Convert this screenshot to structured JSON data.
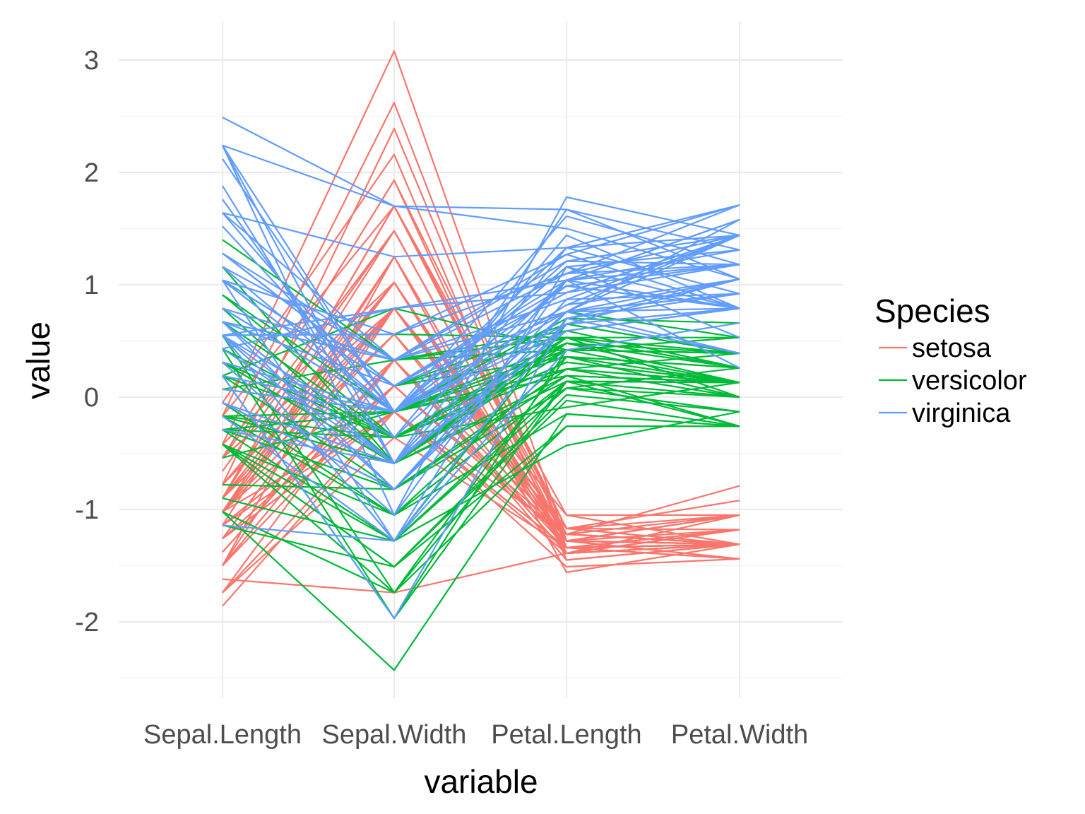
{
  "chart_data": {
    "type": "line",
    "subtype": "parallel-coordinates",
    "xlabel": "variable",
    "ylabel": "value",
    "categories": [
      "Sepal.Length",
      "Sepal.Width",
      "Petal.Length",
      "Petal.Width"
    ],
    "yticks": [
      -2,
      -1,
      0,
      1,
      2,
      3
    ],
    "ylim": [
      -2.6,
      3.2
    ],
    "grid": true,
    "legend": {
      "title": "Species",
      "position": "right",
      "entries": [
        "setosa",
        "versicolor",
        "virginica"
      ]
    },
    "colors": {
      "setosa": "#F8766D",
      "versicolor": "#00BA38",
      "virginica": "#619CFF"
    },
    "series": [
      {
        "group": "setosa",
        "lines": [
          [
            -0.9,
            1.02,
            -1.34,
            -1.31
          ],
          [
            -1.14,
            -0.13,
            -1.34,
            -1.31
          ],
          [
            -1.38,
            0.33,
            -1.39,
            -1.31
          ],
          [
            -1.5,
            0.1,
            -1.28,
            -1.31
          ],
          [
            -1.02,
            1.25,
            -1.34,
            -1.31
          ],
          [
            -0.54,
            1.93,
            -1.17,
            -1.05
          ],
          [
            -1.5,
            0.79,
            -1.34,
            -1.18
          ],
          [
            -1.02,
            0.79,
            -1.28,
            -1.31
          ],
          [
            -1.74,
            -0.36,
            -1.34,
            -1.31
          ],
          [
            -1.14,
            0.1,
            -1.28,
            -1.44
          ],
          [
            -0.54,
            1.48,
            -1.28,
            -1.31
          ],
          [
            -1.26,
            0.79,
            -1.22,
            -1.31
          ],
          [
            -1.26,
            -0.13,
            -1.34,
            -1.44
          ],
          [
            -1.86,
            -0.13,
            -1.51,
            -1.44
          ],
          [
            -0.05,
            2.16,
            -1.45,
            -1.31
          ],
          [
            -0.17,
            3.08,
            -1.28,
            -1.05
          ],
          [
            -0.54,
            1.93,
            -1.39,
            -1.05
          ],
          [
            -0.9,
            1.02,
            -1.34,
            -1.18
          ],
          [
            -0.17,
            1.7,
            -1.17,
            -1.18
          ],
          [
            -0.9,
            1.7,
            -1.28,
            -1.18
          ],
          [
            -0.54,
            0.79,
            -1.17,
            -1.31
          ],
          [
            -0.9,
            1.48,
            -1.28,
            -1.05
          ],
          [
            -1.5,
            1.25,
            -1.56,
            -1.31
          ],
          [
            -0.9,
            0.56,
            -1.17,
            -0.92
          ],
          [
            -1.26,
            0.79,
            -1.05,
            -1.31
          ],
          [
            -1.02,
            -0.13,
            -1.22,
            -1.31
          ],
          [
            -1.02,
            0.79,
            -1.22,
            -1.05
          ],
          [
            -0.78,
            1.02,
            -1.28,
            -1.31
          ],
          [
            -0.78,
            0.79,
            -1.34,
            -1.31
          ],
          [
            -1.38,
            0.33,
            -1.22,
            -1.31
          ],
          [
            -1.26,
            0.1,
            -1.22,
            -1.31
          ],
          [
            -0.54,
            0.79,
            -1.28,
            -1.05
          ],
          [
            -0.78,
            2.39,
            -1.28,
            -1.44
          ],
          [
            -0.42,
            2.62,
            -1.34,
            -1.31
          ],
          [
            -1.14,
            0.1,
            -1.28,
            -1.31
          ],
          [
            -1.02,
            0.33,
            -1.45,
            -1.31
          ],
          [
            -0.42,
            1.02,
            -1.39,
            -1.31
          ],
          [
            -1.14,
            1.25,
            -1.34,
            -1.44
          ],
          [
            -1.74,
            -0.13,
            -1.39,
            -1.31
          ],
          [
            -0.9,
            0.79,
            -1.28,
            -1.31
          ],
          [
            -1.02,
            1.02,
            -1.39,
            -1.18
          ],
          [
            -1.62,
            -1.74,
            -1.39,
            -1.18
          ],
          [
            -1.74,
            0.33,
            -1.39,
            -1.31
          ],
          [
            -1.02,
            1.02,
            -1.22,
            -0.79
          ],
          [
            -0.9,
            1.7,
            -1.05,
            -1.05
          ],
          [
            -1.26,
            -0.13,
            -1.34,
            -1.18
          ],
          [
            -0.9,
            1.7,
            -1.22,
            -1.31
          ],
          [
            -1.5,
            0.33,
            -1.34,
            -1.31
          ],
          [
            -0.66,
            1.48,
            -1.28,
            -1.31
          ],
          [
            -1.02,
            0.56,
            -1.34,
            -1.31
          ]
        ]
      },
      {
        "group": "versicolor",
        "lines": [
          [
            1.4,
            0.33,
            0.53,
            0.26
          ],
          [
            0.67,
            0.33,
            0.42,
            0.39
          ],
          [
            1.28,
            0.1,
            0.65,
            0.39
          ],
          [
            -0.42,
            -1.74,
            0.14,
            0.13
          ],
          [
            0.79,
            -0.59,
            0.48,
            0.39
          ],
          [
            -0.17,
            -0.59,
            0.42,
            0.13
          ],
          [
            0.55,
            0.56,
            0.53,
            0.53
          ],
          [
            -1.14,
            -1.51,
            -0.26,
            -0.26
          ],
          [
            0.91,
            -0.36,
            0.48,
            0.13
          ],
          [
            -0.78,
            -0.82,
            0.08,
            0.26
          ],
          [
            -1.02,
            -2.43,
            -0.15,
            -0.26
          ],
          [
            0.07,
            -0.13,
            0.25,
            0.39
          ],
          [
            0.19,
            -1.97,
            0.14,
            -0.26
          ],
          [
            0.31,
            -0.36,
            0.53,
            0.26
          ],
          [
            -0.29,
            -0.36,
            -0.09,
            0.13
          ],
          [
            1.04,
            0.1,
            0.36,
            0.26
          ],
          [
            -0.29,
            -0.13,
            0.42,
            0.39
          ],
          [
            -0.05,
            -0.82,
            0.19,
            -0.26
          ],
          [
            0.43,
            -1.97,
            0.42,
            0.39
          ],
          [
            -0.29,
            -1.28,
            0.08,
            -0.13
          ],
          [
            0.07,
            0.33,
            0.59,
            0.79
          ],
          [
            0.31,
            -0.59,
            0.14,
            0.13
          ],
          [
            0.55,
            -1.28,
            0.65,
            0.39
          ],
          [
            0.31,
            -0.59,
            0.53,
            0.0
          ],
          [
            0.67,
            -0.36,
            0.31,
            0.13
          ],
          [
            0.91,
            -0.13,
            0.36,
            0.26
          ],
          [
            1.16,
            -0.59,
            0.59,
            0.26
          ],
          [
            1.04,
            -0.13,
            0.7,
            0.66
          ],
          [
            0.19,
            -0.36,
            0.42,
            0.39
          ],
          [
            -0.17,
            -1.05,
            -0.15,
            -0.26
          ],
          [
            -0.42,
            -1.51,
            0.02,
            -0.13
          ],
          [
            -0.42,
            -1.51,
            -0.03,
            -0.26
          ],
          [
            -0.05,
            -0.82,
            0.08,
            0.0
          ],
          [
            0.19,
            -0.82,
            0.76,
            0.53
          ],
          [
            -0.54,
            -0.13,
            0.42,
            0.39
          ],
          [
            0.19,
            0.79,
            0.42,
            0.53
          ],
          [
            1.04,
            0.1,
            0.53,
            0.39
          ],
          [
            0.55,
            -1.74,
            0.36,
            0.13
          ],
          [
            -0.29,
            -0.13,
            0.19,
            0.13
          ],
          [
            -0.42,
            -1.28,
            0.14,
            0.13
          ],
          [
            -0.42,
            -1.05,
            0.36,
            0.0
          ],
          [
            0.31,
            -0.13,
            0.48,
            0.26
          ],
          [
            -0.05,
            -1.05,
            0.14,
            0.0
          ],
          [
            -1.02,
            -1.74,
            -0.26,
            -0.26
          ],
          [
            -0.29,
            -0.82,
            0.25,
            0.13
          ],
          [
            -0.17,
            -0.13,
            0.25,
            0.0
          ],
          [
            -0.17,
            -0.36,
            0.25,
            0.13
          ],
          [
            0.43,
            -0.36,
            0.31,
            0.13
          ],
          [
            -0.9,
            -1.28,
            -0.43,
            -0.13
          ],
          [
            -0.17,
            -0.59,
            0.19,
            0.13
          ]
        ]
      },
      {
        "group": "virginica",
        "lines": [
          [
            0.55,
            0.56,
            1.27,
            1.71
          ],
          [
            -0.05,
            -0.82,
            0.76,
            0.92
          ],
          [
            1.52,
            -0.13,
            1.21,
            1.18
          ],
          [
            0.55,
            -0.36,
            1.04,
            0.79
          ],
          [
            0.79,
            -0.13,
            1.16,
            1.31
          ],
          [
            2.12,
            -0.13,
            1.61,
            1.18
          ],
          [
            -1.14,
            -1.28,
            0.42,
            0.66
          ],
          [
            1.76,
            -0.36,
            1.44,
            0.79
          ],
          [
            1.04,
            -1.28,
            1.16,
            0.79
          ],
          [
            1.64,
            1.25,
            1.33,
            1.71
          ],
          [
            0.79,
            0.33,
            0.76,
            1.05
          ],
          [
            0.67,
            -0.82,
            0.87,
            0.92
          ],
          [
            1.16,
            -0.13,
            0.99,
            1.18
          ],
          [
            -0.17,
            -1.28,
            0.7,
            1.05
          ],
          [
            -0.05,
            -0.59,
            0.76,
            1.58
          ],
          [
            0.67,
            0.33,
            0.87,
            1.44
          ],
          [
            0.79,
            -0.13,
            0.99,
            0.79
          ],
          [
            2.24,
            1.7,
            1.67,
            1.31
          ],
          [
            2.24,
            -1.05,
            1.78,
            1.44
          ],
          [
            0.19,
            -1.97,
            0.7,
            0.39
          ],
          [
            1.28,
            0.33,
            1.1,
            1.44
          ],
          [
            -0.29,
            -0.59,
            0.65,
            1.05
          ],
          [
            2.24,
            -0.59,
            1.67,
            1.05
          ],
          [
            0.55,
            -0.82,
            0.65,
            0.79
          ],
          [
            1.04,
            0.56,
            1.1,
            1.18
          ],
          [
            1.64,
            0.33,
            1.27,
            0.79
          ],
          [
            0.43,
            -0.59,
            0.59,
            0.79
          ],
          [
            0.31,
            -0.13,
            0.65,
            0.79
          ],
          [
            0.67,
            -0.59,
            1.04,
            1.18
          ],
          [
            1.64,
            -0.13,
            1.16,
            0.53
          ],
          [
            1.88,
            -0.59,
            1.33,
            0.92
          ],
          [
            2.49,
            1.7,
            1.5,
            1.05
          ],
          [
            0.67,
            -0.59,
            1.04,
            1.31
          ],
          [
            0.55,
            -0.59,
            0.76,
            0.39
          ],
          [
            0.31,
            -1.05,
            1.04,
            0.26
          ],
          [
            2.24,
            -0.13,
            1.33,
            1.44
          ],
          [
            0.55,
            0.79,
            1.04,
            1.58
          ],
          [
            0.67,
            0.1,
            0.99,
            0.79
          ],
          [
            0.19,
            -0.13,
            0.59,
            0.79
          ],
          [
            1.28,
            0.1,
            0.93,
            1.18
          ],
          [
            1.04,
            0.1,
            1.04,
            1.58
          ],
          [
            1.28,
            0.1,
            0.76,
            1.44
          ],
          [
            -0.05,
            -0.82,
            0.76,
            0.92
          ],
          [
            1.16,
            0.33,
            1.21,
            1.44
          ],
          [
            1.04,
            0.56,
            1.1,
            1.71
          ],
          [
            1.04,
            -0.13,
            0.82,
            1.44
          ],
          [
            0.55,
            -1.28,
            0.7,
            0.92
          ],
          [
            0.79,
            -0.13,
            0.82,
            1.05
          ],
          [
            0.43,
            0.79,
            0.93,
            1.44
          ],
          [
            0.07,
            -0.13,
            0.76,
            0.79
          ]
        ]
      }
    ]
  }
}
